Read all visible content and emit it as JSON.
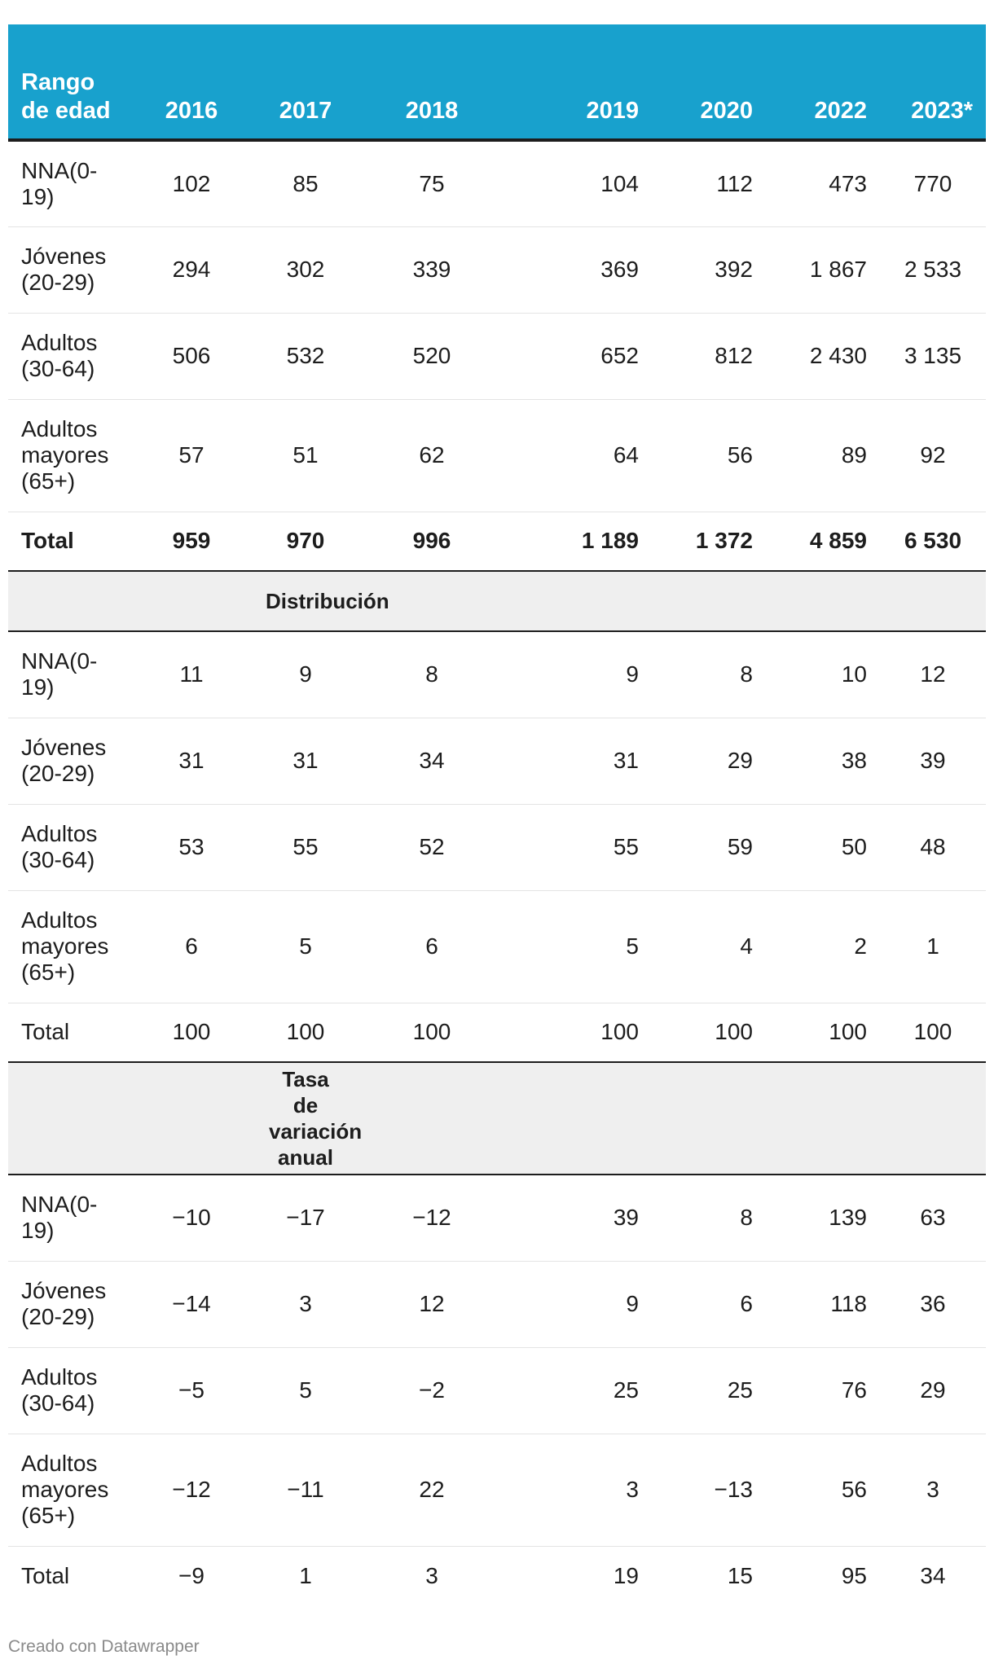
{
  "chart_data": {
    "type": "table",
    "columns": [
      "Rango de edad",
      "2016",
      "2017",
      "2018",
      "2019",
      "2020",
      "2022",
      "2023*"
    ],
    "sections": [
      {
        "title": "",
        "rows": [
          {
            "label": "NNA(0-19)",
            "values": [
              "102",
              "85",
              "75",
              "104",
              "112",
              "473",
              "770"
            ]
          },
          {
            "label": "Jóvenes (20-29)",
            "values": [
              "294",
              "302",
              "339",
              "369",
              "392",
              "1 867",
              "2 533"
            ]
          },
          {
            "label": "Adultos (30-64)",
            "values": [
              "506",
              "532",
              "520",
              "652",
              "812",
              "2 430",
              "3 135"
            ]
          },
          {
            "label": "Adultos mayores (65+)",
            "values": [
              "57",
              "51",
              "62",
              "64",
              "56",
              "89",
              "92"
            ]
          },
          {
            "label": "Total",
            "values": [
              "959",
              "970",
              "996",
              "1 189",
              "1 372",
              "4 859",
              "6 530"
            ]
          }
        ]
      },
      {
        "title": "Distribución",
        "rows": [
          {
            "label": "NNA(0-19)",
            "values": [
              "11",
              "9",
              "8",
              "9",
              "8",
              "10",
              "12"
            ]
          },
          {
            "label": "Jóvenes (20-29)",
            "values": [
              "31",
              "31",
              "34",
              "31",
              "29",
              "38",
              "39"
            ]
          },
          {
            "label": "Adultos (30-64)",
            "values": [
              "53",
              "55",
              "52",
              "55",
              "59",
              "50",
              "48"
            ]
          },
          {
            "label": "Adultos mayores (65+)",
            "values": [
              "6",
              "5",
              "6",
              "5",
              "4",
              "2",
              "1"
            ]
          },
          {
            "label": "Total",
            "values": [
              "100",
              "100",
              "100",
              "100",
              "100",
              "100",
              "100"
            ]
          }
        ]
      },
      {
        "title": "Tasa de variación anual",
        "rows": [
          {
            "label": "NNA(0-19)",
            "values": [
              "−10",
              "−17",
              "−12",
              "39",
              "8",
              "139",
              "63"
            ]
          },
          {
            "label": "Jóvenes (20-29)",
            "values": [
              "−14",
              "3",
              "12",
              "9",
              "6",
              "118",
              "36"
            ]
          },
          {
            "label": "Adultos (30-64)",
            "values": [
              "−5",
              "5",
              "−2",
              "25",
              "25",
              "76",
              "29"
            ]
          },
          {
            "label": "Adultos mayores (65+)",
            "values": [
              "−12",
              "−11",
              "22",
              "3",
              "−13",
              "56",
              "3"
            ]
          },
          {
            "label": "Total",
            "values": [
              "−9",
              "1",
              "3",
              "19",
              "15",
              "95",
              "34"
            ]
          }
        ]
      }
    ],
    "header_color": "#18a1cd"
  },
  "footer": {
    "credit": "Creado con Datawrapper"
  }
}
